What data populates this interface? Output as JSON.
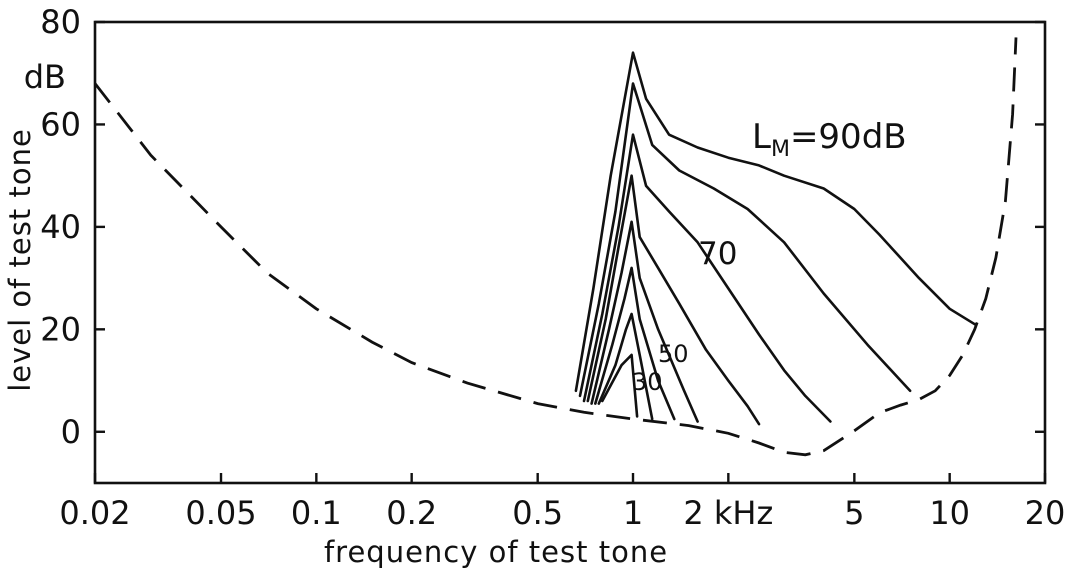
{
  "chart_data": {
    "type": "line",
    "xscale": "log",
    "xlabel": "frequency of test tone",
    "ylabel": "level of test tone",
    "xlim": [
      0.02,
      20
    ],
    "ylim": [
      -10,
      80
    ],
    "x_ticks": [
      {
        "value": 0.02,
        "label": "0.02"
      },
      {
        "value": 0.05,
        "label": "0.05"
      },
      {
        "value": 0.1,
        "label": "0.1"
      },
      {
        "value": 0.2,
        "label": "0.2"
      },
      {
        "value": 0.5,
        "label": "0.5"
      },
      {
        "value": 1,
        "label": "1"
      },
      {
        "value": 2,
        "label": "2 kHz"
      },
      {
        "value": 5,
        "label": "5"
      },
      {
        "value": 10,
        "label": "10"
      },
      {
        "value": 20,
        "label": "20"
      }
    ],
    "y_ticks": [
      {
        "value": 0,
        "label": "0"
      },
      {
        "value": 20,
        "label": "20"
      },
      {
        "value": 40,
        "label": "40"
      },
      {
        "value": 60,
        "label": "60"
      },
      {
        "value": 80,
        "label": "80"
      }
    ],
    "y_unit_label": "dB",
    "grid": false,
    "legend": "none",
    "threshold_in_quiet": {
      "style": "dashed",
      "x": [
        0.02,
        0.03,
        0.05,
        0.07,
        0.1,
        0.15,
        0.2,
        0.3,
        0.5,
        0.7,
        1.0,
        1.5,
        2.0,
        2.5,
        3.0,
        3.5,
        4.0,
        5.0,
        6.0,
        7.0,
        8.0,
        9.0,
        10.0,
        11.0,
        12.0,
        13.0,
        14.0,
        15.0,
        15.8,
        16.2
      ],
      "y": [
        68,
        54,
        40,
        31,
        24,
        17.5,
        13.5,
        9.5,
        5.5,
        3.8,
        2.5,
        1.2,
        -0.3,
        -2.2,
        -4,
        -4.5,
        -3.7,
        0.2,
        3.7,
        5.2,
        6.3,
        8,
        11,
        15,
        20,
        26,
        34,
        45,
        62,
        77
      ]
    },
    "masked_thresholds": [
      {
        "label": "",
        "x": [
          0.66,
          0.75,
          0.85,
          1.0,
          1.1,
          1.3,
          1.6,
          2.0,
          2.5,
          3.0,
          4.0,
          5.0,
          6.0,
          8.0,
          10.0,
          12.0
        ],
        "y": [
          8,
          28,
          50,
          74,
          65,
          58,
          55.5,
          53.5,
          52,
          50,
          47.5,
          43.5,
          38.5,
          30,
          24,
          21
        ]
      },
      {
        "label": "",
        "x": [
          0.68,
          0.78,
          0.88,
          1.0,
          1.15,
          1.4,
          1.8,
          2.3,
          3.0,
          4.0,
          5.5,
          7.5
        ],
        "y": [
          7,
          25,
          43,
          68,
          56,
          51,
          47.5,
          43.5,
          37,
          27,
          17,
          8
        ]
      },
      {
        "label": "70",
        "x": [
          0.7,
          0.8,
          0.9,
          1.0,
          1.1,
          1.3,
          1.6,
          2.0,
          2.5,
          3.0,
          3.5,
          4.2
        ],
        "y": [
          6,
          23,
          40,
          58,
          48,
          43,
          37,
          28,
          19,
          12,
          7,
          2
        ]
      },
      {
        "label": "",
        "x": [
          0.72,
          0.82,
          0.9,
          0.99,
          1.05,
          1.2,
          1.4,
          1.7,
          2.0,
          2.3,
          2.5
        ],
        "y": [
          6,
          22,
          36,
          50,
          38,
          32,
          25,
          16,
          10,
          5,
          1.5
        ]
      },
      {
        "label": "50",
        "x": [
          0.74,
          0.84,
          0.92,
          0.99,
          1.05,
          1.2,
          1.45,
          1.6
        ],
        "y": [
          5.5,
          20,
          31,
          41,
          30,
          20,
          8,
          2
        ]
      },
      {
        "label": "",
        "x": [
          0.76,
          0.86,
          0.94,
          0.99,
          1.05,
          1.2,
          1.35
        ],
        "y": [
          5.5,
          17,
          26,
          32,
          22,
          10,
          2.5
        ]
      },
      {
        "label": "30",
        "x": [
          0.78,
          0.88,
          0.95,
          0.99,
          1.05,
          1.15
        ],
        "y": [
          5.5,
          13,
          20,
          23,
          15,
          2.5
        ]
      },
      {
        "label": "",
        "x": [
          0.8,
          0.92,
          0.99,
          1.03
        ],
        "y": [
          6,
          13,
          15,
          3
        ]
      }
    ],
    "annotations": {
      "masker_prefix": "L",
      "masker_sub": "M",
      "masker_suffix": "=90dB",
      "curve_70": "70",
      "curve_50": "50",
      "curve_30": "30"
    }
  }
}
